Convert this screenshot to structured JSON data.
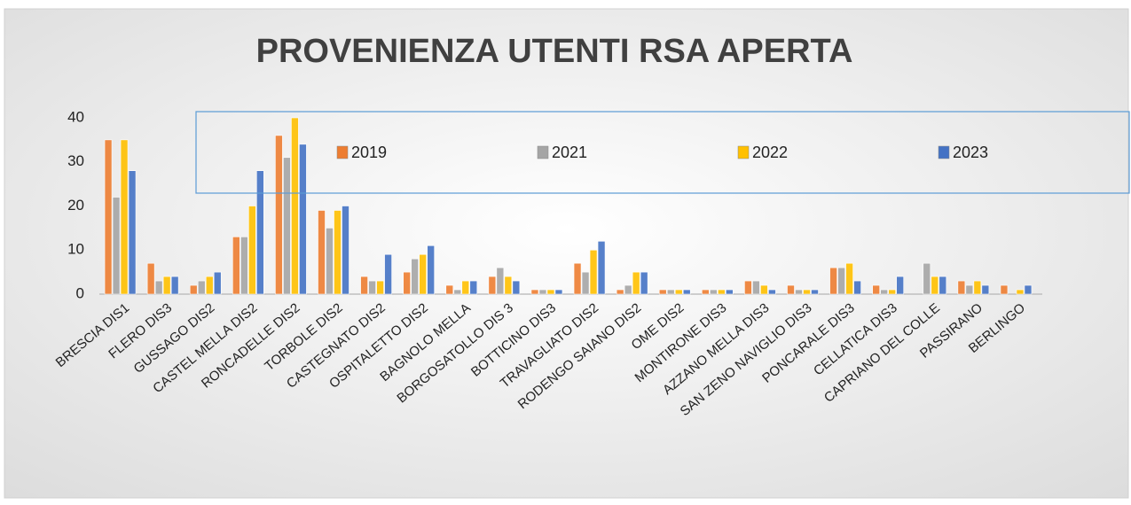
{
  "chart_data": {
    "type": "bar",
    "title": "PROVENIENZA UTENTI RSA APERTA",
    "categories": [
      "BRESCIA DIS1",
      "FLERO DIS3",
      "GUSSAGO DIS2",
      "CASTEL MELLA DIS2",
      "RONCADELLE DIS2",
      "TORBOLE DIS2",
      "CASTEGNATO DIS2",
      "OSPITALETTO DIS2",
      "BAGNOLO MELLA",
      "BORGOSATOLLO DIS 3",
      "BOTTICINO DIS3",
      "TRAVAGLIATO DIS2",
      "RODENGO SAIANO DIS2",
      "OME DIS2",
      "MONTIRONE DIS3",
      "AZZANO MELLA DIS3",
      "SAN ZENO NAVIGLIO DIS3",
      "PONCARALE DIS3",
      "CELLATICA DIS3",
      "CAPRIANO DEL COLLE",
      "PASSIRANO",
      "BERLINGO"
    ],
    "series": [
      {
        "name": "2019",
        "color": "#ed7d31",
        "values": [
          35,
          7,
          2,
          13,
          36,
          19,
          4,
          5,
          2,
          4,
          1,
          7,
          1,
          1,
          1,
          3,
          2,
          6,
          2,
          0,
          3,
          2
        ]
      },
      {
        "name": "2021",
        "color": "#a5a5a5",
        "values": [
          22,
          3,
          3,
          13,
          31,
          15,
          3,
          8,
          1,
          6,
          1,
          5,
          2,
          1,
          1,
          3,
          1,
          6,
          1,
          7,
          2,
          0
        ]
      },
      {
        "name": "2022",
        "color": "#ffc000",
        "values": [
          35,
          4,
          4,
          20,
          40,
          19,
          3,
          9,
          3,
          4,
          1,
          10,
          5,
          1,
          1,
          2,
          1,
          7,
          1,
          4,
          3,
          1
        ]
      },
      {
        "name": "2023",
        "color": "#4472c4",
        "values": [
          28,
          4,
          5,
          28,
          34,
          20,
          9,
          11,
          3,
          3,
          1,
          12,
          5,
          1,
          1,
          1,
          1,
          3,
          4,
          4,
          2,
          2
        ]
      }
    ],
    "ylim": [
      0,
      40
    ],
    "yticks": [
      0,
      10,
      20,
      30,
      40
    ],
    "grid": false,
    "legend": "top"
  }
}
